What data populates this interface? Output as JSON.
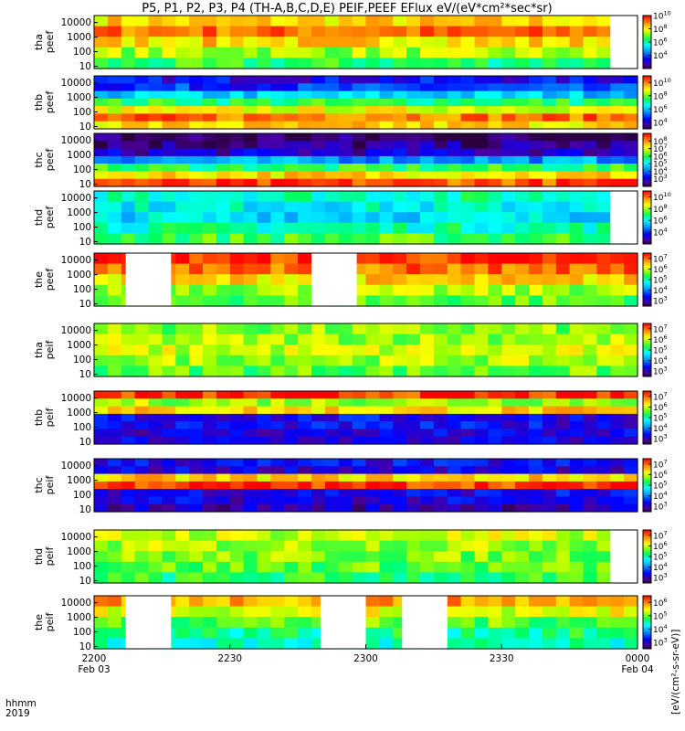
{
  "title": "P5, P1, P2, P3, P4 (TH-A,B,C,D,E) PEIF,PEEF EFlux eV/(eV*cm²*sec*sr)",
  "footer": {
    "axis_label": "hhmm",
    "year": "2019"
  },
  "colorbar_unit_label": "[eV/(cm²-s-sr-eV)]",
  "colors": {
    "gap": "#ffffff",
    "frame": "#000000"
  },
  "chart_data": {
    "type": "heatmap",
    "title": "P5, P1, P2, P3, P4 (TH-A,B,C,D,E) PEIF,PEEF EFlux eV/(eV*cm²*sec*sr)",
    "x_tick_labels": [
      {
        "time": "2200",
        "date": "Feb 03"
      },
      {
        "time": "2230",
        "date": ""
      },
      {
        "time": "2300",
        "date": ""
      },
      {
        "time": "2330",
        "date": ""
      },
      {
        "time": "0000",
        "date": "Feb 04"
      }
    ],
    "x_range_minutes": [
      0,
      120
    ],
    "y_scale": "log",
    "y_range_eV": [
      7,
      30000
    ],
    "y_tick_labels": [
      "10000",
      "1000",
      "100",
      "10"
    ],
    "colorscale": "rainbow (violet-blue-cyan-green-yellow-red)",
    "panels": [
      {
        "sc": "tha",
        "species": "peef",
        "ylabel": [
          "tha",
          "peef"
        ],
        "cbar_exponents": [
          "10",
          "8",
          "6",
          "4"
        ],
        "cbar_log_range": [
          2,
          10
        ],
        "data_gaps_minutes": [
          [
            114,
            120
          ]
        ],
        "rows_log": [
          14,
          16,
          14,
          12,
          10
        ]
      },
      {
        "sc": "thb",
        "species": "peef",
        "ylabel": [
          "thb",
          "peef"
        ],
        "cbar_exponents": [
          "10",
          "8",
          "6",
          "4"
        ],
        "cbar_log_range": [
          3,
          11
        ],
        "data_gaps_minutes": [],
        "rows_log": [
          3,
          4,
          7,
          10,
          13,
          16,
          14
        ]
      },
      {
        "sc": "thc",
        "species": "peef",
        "ylabel": [
          "thc",
          "peef"
        ],
        "cbar_exponents": [
          "8",
          "7",
          "6",
          "5",
          "4",
          "3"
        ],
        "cbar_log_range": [
          2,
          9
        ],
        "data_gaps_minutes": [],
        "rows_log": [
          0.5,
          1.2,
          2.2,
          6,
          10,
          14,
          16.5
        ]
      },
      {
        "sc": "thd",
        "species": "peef",
        "ylabel": [
          "thd",
          "peef"
        ],
        "cbar_exponents": [
          "10",
          "8",
          "6",
          "4"
        ],
        "cbar_log_range": [
          2,
          11
        ],
        "data_gaps_minutes": [
          [
            114,
            120
          ]
        ],
        "rows_log": [
          9,
          8,
          7.5,
          9,
          10.5
        ]
      },
      {
        "sc": "the",
        "species": "peef",
        "ylabel": [
          "the",
          "peef"
        ],
        "cbar_exponents": [
          "7",
          "6",
          "5",
          "4",
          "3"
        ],
        "cbar_log_range": [
          2.5,
          7.5
        ],
        "data_gaps_minutes": [
          [
            7,
            17
          ],
          [
            48,
            58
          ]
        ],
        "rows_log": [
          17,
          16,
          14,
          12,
          11
        ]
      },
      {
        "sc": "tha",
        "species": "peif",
        "ylabel": [
          "tha",
          "peif"
        ],
        "cbar_exponents": [
          "7",
          "6",
          "5",
          "4",
          "3"
        ],
        "cbar_log_range": [
          2.5,
          7.5
        ],
        "data_gaps_minutes": [],
        "rows_log": [
          11.5,
          12,
          12.5,
          12,
          11
        ]
      },
      {
        "sc": "thb",
        "species": "peif",
        "ylabel": [
          "thb",
          "peif"
        ],
        "cbar_exponents": [
          "7",
          "6",
          "5",
          "4",
          "3"
        ],
        "cbar_log_range": [
          2.5,
          7.5
        ],
        "data_gaps_minutes": [],
        "rows_log": [
          17,
          12,
          14,
          3,
          3,
          2.5,
          2.5
        ]
      },
      {
        "sc": "thc",
        "species": "peif",
        "ylabel": [
          "thc",
          "peif"
        ],
        "cbar_exponents": [
          "7",
          "6",
          "5",
          "4",
          "3"
        ],
        "cbar_log_range": [
          2.5,
          7.5
        ],
        "data_gaps_minutes": [],
        "rows_log": [
          3,
          2.5,
          14,
          17,
          3,
          2.5,
          2
        ]
      },
      {
        "sc": "thd",
        "species": "peif",
        "ylabel": [
          "thd",
          "peif"
        ],
        "cbar_exponents": [
          "7",
          "6",
          "5",
          "4",
          "3"
        ],
        "cbar_log_range": [
          2.5,
          7.5
        ],
        "data_gaps_minutes": [
          [
            114,
            120
          ]
        ],
        "rows_log": [
          12.5,
          12,
          11.5,
          11,
          10
        ]
      },
      {
        "sc": "the",
        "species": "peif",
        "ylabel": [
          "the",
          "peif"
        ],
        "cbar_exponents": [
          "6",
          "5",
          "4",
          "3"
        ],
        "cbar_log_range": [
          2.5,
          6.5
        ],
        "data_gaps_minutes": [
          [
            7,
            17
          ],
          [
            50,
            60
          ],
          [
            68,
            78
          ]
        ],
        "rows_log": [
          15,
          13,
          11,
          9.5,
          8.5
        ]
      }
    ]
  }
}
